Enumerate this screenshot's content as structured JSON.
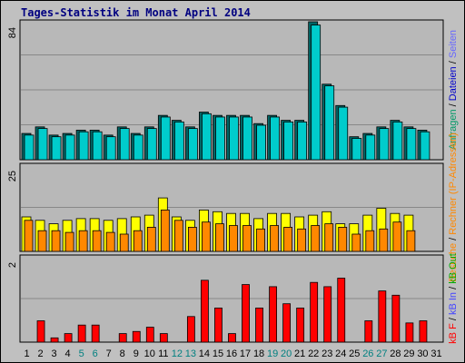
{
  "title": "Tages-Statistik im Monat April 2014",
  "colors": {
    "background": "#c0c0c0",
    "panel": "#b8b8b8",
    "title": "#000080",
    "anfragen": "#00cccc",
    "dateien": "#0000cc",
    "rechner": "#ffff00",
    "besuche": "#ff8800",
    "kb_f": "#ff0000",
    "kb_in": "#4444ff",
    "kb_out": "#00aa00",
    "weekend": "#008080",
    "weekday": "#000000"
  },
  "legend_right": {
    "panel1": [
      {
        "text": "Anfragen",
        "color": "#009966"
      },
      {
        "text": " / ",
        "color": "#000000"
      },
      {
        "text": "Dateien",
        "color": "#0000cc"
      },
      {
        "text": " / ",
        "color": "#000000"
      },
      {
        "text": "Seiten",
        "color": "#6666ff"
      }
    ],
    "panel2": [
      {
        "text": "Besuche",
        "color": "#ff8800"
      },
      {
        "text": " / ",
        "color": "#000000"
      },
      {
        "text": "Rechner (IP-Adressen)",
        "color": "#ff8800"
      }
    ],
    "panel3": [
      {
        "text": "kB F",
        "color": "#ff0000"
      },
      {
        "text": " / ",
        "color": "#000000"
      },
      {
        "text": "kB In",
        "color": "#4444ff"
      },
      {
        "text": " / ",
        "color": "#000000"
      },
      {
        "text": "kB Out",
        "color": "#00aa00"
      }
    ]
  },
  "chart_data": [
    {
      "type": "bar",
      "title": "Tages-Statistik im Monat April 2014",
      "categories": [
        "1",
        "2",
        "3",
        "4",
        "5",
        "6",
        "7",
        "8",
        "9",
        "10",
        "11",
        "12",
        "13",
        "14",
        "15",
        "16",
        "17",
        "18",
        "19",
        "20",
        "21",
        "22",
        "23",
        "24",
        "25",
        "26",
        "27",
        "28",
        "29",
        "30",
        "31"
      ],
      "weekend_days": [
        5,
        6,
        12,
        13,
        19,
        20,
        26,
        27
      ],
      "ymax": 84,
      "ymax_label": "84",
      "series": [
        {
          "name": "Anfragen",
          "values": [
            16,
            20,
            15,
            16,
            18,
            18,
            15,
            20,
            16,
            20,
            27,
            24,
            20,
            29,
            27,
            27,
            27,
            22,
            27,
            24,
            24,
            84,
            46,
            33,
            14,
            16,
            20,
            24,
            20,
            18,
            0
          ]
        },
        {
          "name": "Dateien",
          "values": [
            15,
            19,
            14,
            15,
            17,
            17,
            14,
            19,
            15,
            19,
            26,
            23,
            19,
            28,
            26,
            26,
            26,
            21,
            26,
            23,
            23,
            82,
            45,
            32,
            13,
            15,
            19,
            23,
            19,
            17,
            0
          ]
        }
      ]
    },
    {
      "type": "bar",
      "ymax": 25,
      "ymax_label": "25",
      "series": [
        {
          "name": "Rechner",
          "values": [
            10,
            9,
            8,
            9,
            9.5,
            9.5,
            9,
            9.5,
            10,
            10.5,
            15.5,
            10,
            9,
            12,
            11.5,
            11,
            11,
            9.5,
            11,
            11,
            10,
            10.5,
            11.5,
            8,
            8,
            10.5,
            12.5,
            11,
            10.5,
            0,
            0
          ]
        },
        {
          "name": "Besuche",
          "values": [
            9,
            6,
            6,
            5.5,
            6,
            6,
            5.5,
            5,
            6,
            7,
            12,
            9,
            7,
            8.5,
            8,
            7.5,
            7.5,
            6.5,
            7.5,
            7,
            6.5,
            7.5,
            8,
            7,
            5,
            6,
            6.5,
            8.5,
            6,
            7,
            0
          ]
        }
      ]
    },
    {
      "type": "bar",
      "ymax": 2,
      "ymax_label": "2",
      "series": [
        {
          "name": "kB F",
          "values": [
            0,
            0.5,
            0.1,
            0.2,
            0.4,
            0.4,
            0,
            0.2,
            0.25,
            0.35,
            0.2,
            0,
            0.6,
            1.45,
            0.8,
            0.2,
            1.35,
            0.8,
            1.3,
            0.9,
            0.8,
            1.4,
            1.3,
            1.5,
            0,
            0.5,
            1.2,
            1.1,
            0.45,
            0.5,
            0
          ]
        }
      ]
    }
  ]
}
